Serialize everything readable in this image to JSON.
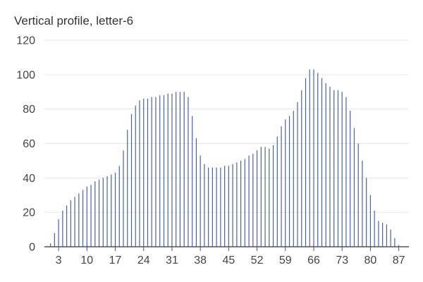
{
  "chart_data": {
    "type": "bar",
    "title": "Vertical profile, letter-6",
    "xlabel": "",
    "ylabel": "",
    "ylim": [
      0,
      120
    ],
    "yticks": [
      0,
      20,
      40,
      60,
      80,
      100,
      120
    ],
    "xticks": [
      3,
      10,
      17,
      24,
      31,
      38,
      45,
      52,
      59,
      66,
      73,
      80,
      87
    ],
    "x": [
      0,
      1,
      2,
      3,
      4,
      5,
      6,
      7,
      8,
      9,
      10,
      11,
      12,
      13,
      14,
      15,
      16,
      17,
      18,
      19,
      20,
      21,
      22,
      23,
      24,
      25,
      26,
      27,
      28,
      29,
      30,
      31,
      32,
      33,
      34,
      35,
      36,
      37,
      38,
      39,
      40,
      41,
      42,
      43,
      44,
      45,
      46,
      47,
      48,
      49,
      50,
      51,
      52,
      53,
      54,
      55,
      56,
      57,
      58,
      59,
      60,
      61,
      62,
      63,
      64,
      65,
      66,
      67,
      68,
      69,
      70,
      71,
      72,
      73,
      74,
      75,
      76,
      77,
      78,
      79,
      80,
      81,
      82,
      83,
      84,
      85,
      86,
      87,
      88,
      89
    ],
    "values": [
      0,
      2,
      8,
      16,
      21,
      24,
      27,
      29,
      31,
      33,
      35,
      36,
      38,
      39,
      40,
      41,
      42,
      43,
      47,
      56,
      68,
      77,
      82,
      85,
      86,
      86,
      87,
      87,
      88,
      88,
      89,
      89,
      90,
      90,
      90,
      87,
      76,
      63,
      53,
      48,
      46,
      46,
      46,
      46,
      47,
      47,
      48,
      49,
      50,
      51,
      53,
      54,
      56,
      58,
      58,
      57,
      59,
      64,
      70,
      74,
      76,
      79,
      84,
      91,
      98,
      103,
      103,
      101,
      98,
      95,
      93,
      91,
      91,
      90,
      87,
      79,
      69,
      60,
      50,
      40,
      30,
      21,
      15,
      14,
      13,
      10,
      5,
      1,
      0,
      0
    ],
    "grid": true,
    "colors": {
      "bar": "#4a63a8",
      "grid": "#e4e7ee",
      "axis": "#555555"
    }
  }
}
